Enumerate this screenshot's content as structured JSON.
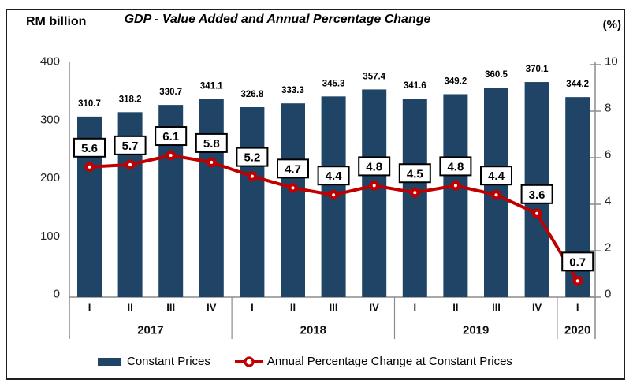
{
  "header": {
    "left_axis_title": "RM billion",
    "title": "GDP - Value Added and Annual Percentage Change",
    "right_axis_title": "(%)"
  },
  "legend": {
    "bar_label": "Constant Prices",
    "line_label": "Annual Percentage Change at Constant Prices"
  },
  "colors": {
    "bar": "#1F4466",
    "line": "#C00000",
    "axis": "#8C8C8C",
    "tick_text": "#222222",
    "label_box_bg": "#FFFFFF",
    "label_box_border": "#000000",
    "frame_border": "#1F1F1F"
  },
  "chart_data": {
    "type": "bar+line combo",
    "title": "GDP - Value Added and Annual Percentage Change",
    "categories": [
      "I",
      "II",
      "III",
      "IV",
      "I",
      "II",
      "III",
      "IV",
      "I",
      "II",
      "III",
      "IV",
      "I"
    ],
    "year_groups": [
      {
        "label": "2017",
        "span": 4
      },
      {
        "label": "2018",
        "span": 4
      },
      {
        "label": "2019",
        "span": 4
      },
      {
        "label": "2020",
        "span": 1
      }
    ],
    "series": [
      {
        "name": "Constant Prices",
        "type": "bar",
        "axis": "left",
        "unit": "RM billion",
        "values": [
          310.7,
          318.2,
          330.7,
          341.1,
          326.8,
          333.3,
          345.3,
          357.4,
          341.6,
          349.2,
          360.5,
          370.1,
          344.2
        ]
      },
      {
        "name": "Annual Percentage Change at Constant Prices",
        "type": "line",
        "axis": "right",
        "unit": "%",
        "values": [
          5.6,
          5.7,
          6.1,
          5.8,
          5.2,
          4.7,
          4.4,
          4.8,
          4.5,
          4.8,
          4.4,
          3.6,
          0.7
        ]
      }
    ],
    "left_axis": {
      "label": "RM billion",
      "range": [
        0,
        400
      ],
      "ticks": [
        0,
        100,
        200,
        300,
        400
      ]
    },
    "right_axis": {
      "label": "(%)",
      "range": [
        0,
        10
      ],
      "ticks": [
        0,
        2,
        4,
        6,
        8,
        10
      ]
    },
    "grid": false,
    "legend_position": "bottom"
  }
}
